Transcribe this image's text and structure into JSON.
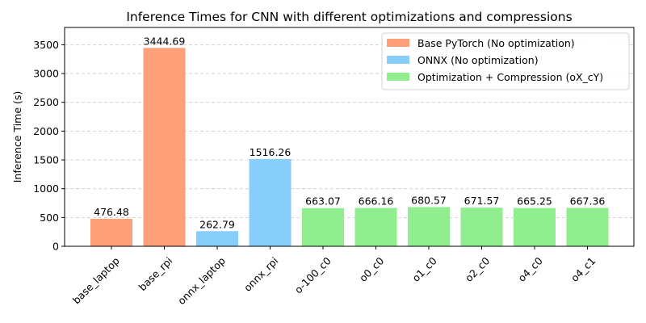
{
  "chart_data": {
    "type": "bar",
    "title": "Inference Times for CNN with different optimizations and compressions",
    "xlabel": "",
    "ylabel": "Inference Time (s)",
    "ylim": [
      0,
      3800
    ],
    "yticks": [
      0,
      500,
      1000,
      1500,
      2000,
      2500,
      3000,
      3500
    ],
    "grid": "y-dashed",
    "legend_position": "top-right",
    "categories": [
      "base_laptop",
      "base_rpi",
      "onnx_laptop",
      "onnx_rpi",
      "o-100_c0",
      "o0_c0",
      "o1_c0",
      "o2_c0",
      "o4_c0",
      "o4_c1"
    ],
    "values": [
      476.48,
      3444.69,
      262.79,
      1516.26,
      663.07,
      666.16,
      680.57,
      671.57,
      665.25,
      667.36
    ],
    "value_labels": [
      "476.48",
      "3444.69",
      "262.79",
      "1516.26",
      "663.07",
      "666.16",
      "680.57",
      "671.57",
      "665.25",
      "667.36"
    ],
    "bar_groups": [
      0,
      0,
      1,
      1,
      2,
      2,
      2,
      2,
      2,
      2
    ],
    "series": [
      {
        "name": "Base PyTorch (No optimization)",
        "color": "#ffa07a"
      },
      {
        "name": "ONNX (No optimization)",
        "color": "#87cefa"
      },
      {
        "name": "Optimization + Compression (oX_cY)",
        "color": "#90ee90"
      }
    ]
  }
}
